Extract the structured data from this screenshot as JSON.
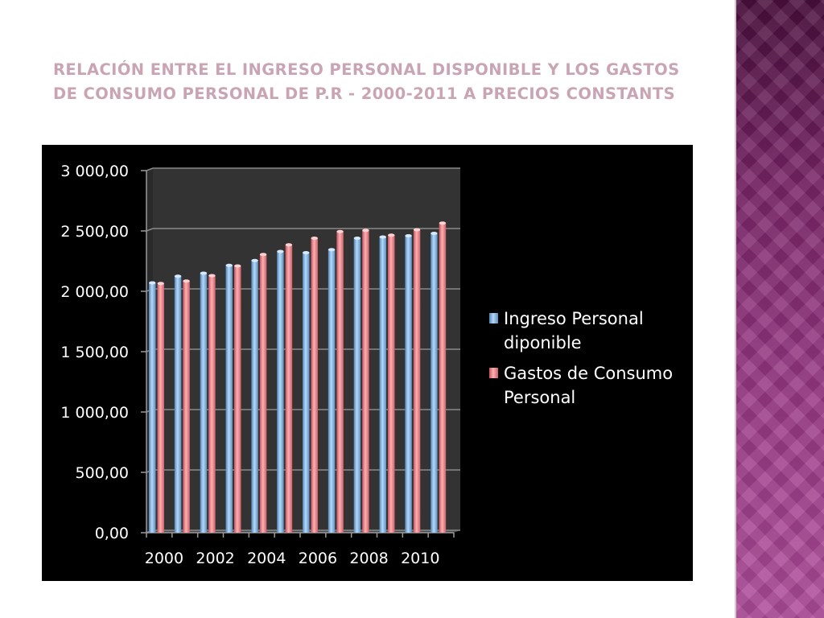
{
  "slide": {
    "title": "Relación entre el Ingreso Personal Disponible y los Gastos de Consumo Personal de P.R - 2000-2011 a precios constants"
  },
  "colors": {
    "series_1": "#7fb2e0",
    "series_2": "#e88a8f",
    "plot_area": "#333333",
    "background": "#000000",
    "gridline": "#8a8a8a",
    "side_strip": "#8b2f7a"
  },
  "chart_data": {
    "type": "bar",
    "style": "3d-clustered-column",
    "title": "",
    "xlabel": "",
    "ylabel": "",
    "categories": [
      "2000",
      "2001",
      "2002",
      "2003",
      "2004",
      "2005",
      "2006",
      "2007",
      "2008",
      "2009",
      "2010",
      "2011"
    ],
    "x_tick_labels": [
      "2000",
      "2002",
      "2004",
      "2006",
      "2008",
      "2010"
    ],
    "y_tick_labels": [
      "0,00",
      "500,00",
      "1 000,00",
      "1 500,00",
      "2 000,00",
      "2 500,00",
      "3 000,00"
    ],
    "ylim": [
      0,
      3000
    ],
    "y_tick_step": 500,
    "grid": true,
    "legend_position": "right",
    "series": [
      {
        "name": "Ingreso Personal diponible",
        "legend_lines": [
          "Ingreso Personal",
          "diponible"
        ],
        "values": [
          2070,
          2125,
          2150,
          2215,
          2255,
          2330,
          2320,
          2345,
          2440,
          2450,
          2460,
          2480
        ]
      },
      {
        "name": "Gastos de Consumo Personal",
        "legend_lines": [
          "Gastos de Consumo",
          "Personal"
        ],
        "values": [
          2065,
          2085,
          2130,
          2210,
          2305,
          2385,
          2440,
          2495,
          2505,
          2465,
          2510,
          2565
        ]
      }
    ]
  }
}
